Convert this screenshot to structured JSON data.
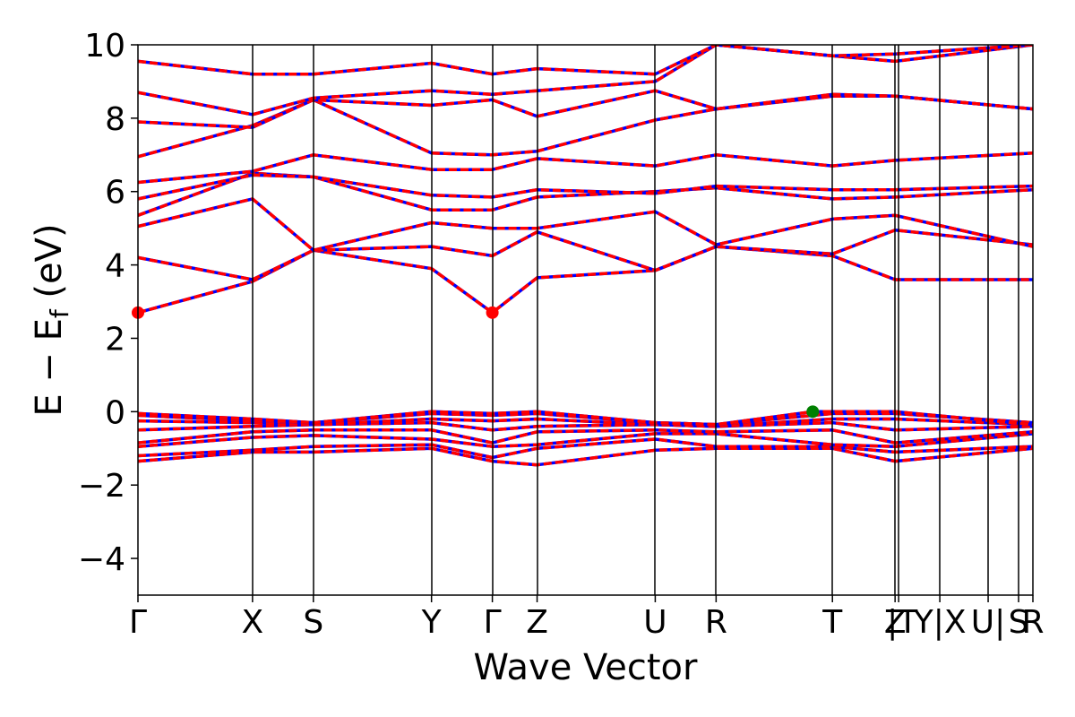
{
  "chart_data": {
    "type": "line",
    "xlabel": "Wave Vector",
    "ylabel": "E − E",
    "ylabel_sub": "f",
    "ylabel_unit": " (eV)",
    "ylim": [
      -5,
      10
    ],
    "yticks": [
      -4,
      -2,
      0,
      2,
      4,
      6,
      8,
      10
    ],
    "yticks_labels": [
      "−4",
      "−2",
      "0",
      "2",
      "4",
      "6",
      "8",
      "10"
    ],
    "xlim": [
      0,
      25
    ],
    "kpoints": [
      {
        "label": "Γ",
        "x": 0
      },
      {
        "label": "X",
        "x": 3.2
      },
      {
        "label": "S",
        "x": 4.9
      },
      {
        "label": "Y",
        "x": 8.2
      },
      {
        "label": "Γ",
        "x": 9.9
      },
      {
        "label": "Z",
        "x": 11.15
      },
      {
        "label": "U",
        "x": 14.45
      },
      {
        "label": "R",
        "x": 16.15
      },
      {
        "label": "T",
        "x": 19.4
      },
      {
        "label": "Z",
        "x": 21.15
      },
      {
        "label": "|T",
        "x": 21.25
      },
      {
        "label": "Y|X",
        "x": 22.4
      },
      {
        "label": "U|",
        "x": 23.75
      },
      {
        "label": "S",
        "x": 24.6
      },
      {
        "label": "R",
        "x": 25
      }
    ],
    "band_colors": {
      "spin_up": "#0000ff",
      "spin_down": "#ff0000"
    },
    "cbm_points": [
      {
        "x": 0,
        "y": 2.7
      },
      {
        "x": 9.9,
        "y": 2.7
      }
    ],
    "vbm_points": [
      {
        "x": 18.85,
        "y": 0.0
      }
    ],
    "cbm_color": "#ff0000",
    "vbm_color": "#008000",
    "bands": [
      {
        "x": [
          0,
          3.2,
          4.9,
          8.2,
          9.9,
          11.15,
          14.45,
          16.15,
          19.4,
          21.15,
          25
        ],
        "y": [
          -1.35,
          -1.1,
          -1.1,
          -1.0,
          -1.35,
          -1.45,
          -1.05,
          -1.0,
          -1.0,
          -1.35,
          -1.0
        ]
      },
      {
        "x": [
          0,
          3.2,
          4.9,
          8.2,
          9.9,
          11.15,
          14.45,
          16.15,
          19.4,
          21.15,
          25
        ],
        "y": [
          -1.2,
          -1.05,
          -0.95,
          -0.9,
          -1.25,
          -1.0,
          -0.75,
          -0.95,
          -0.95,
          -1.1,
          -0.95
        ]
      },
      {
        "x": [
          0,
          3.2,
          4.9,
          8.2,
          9.9,
          11.15,
          14.45,
          16.15,
          19.4,
          21.15,
          25
        ],
        "y": [
          -0.95,
          -0.7,
          -0.65,
          -0.75,
          -0.95,
          -0.9,
          -0.6,
          -0.6,
          -0.9,
          -0.95,
          -0.6
        ]
      },
      {
        "x": [
          0,
          3.2,
          4.9,
          8.2,
          9.9,
          11.15,
          14.45,
          16.15,
          19.4,
          21.15,
          25
        ],
        "y": [
          -0.85,
          -0.55,
          -0.5,
          -0.5,
          -0.85,
          -0.55,
          -0.5,
          -0.55,
          -0.5,
          -0.85,
          -0.55
        ]
      },
      {
        "x": [
          0,
          3.2,
          4.9,
          8.2,
          9.9,
          11.15,
          14.45,
          16.15,
          19.4,
          21.15,
          25
        ],
        "y": [
          -0.5,
          -0.4,
          -0.35,
          -0.3,
          -0.5,
          -0.4,
          -0.35,
          -0.4,
          -0.3,
          -0.5,
          -0.4
        ]
      },
      {
        "x": [
          0,
          3.2,
          4.9,
          8.2,
          9.9,
          11.15,
          14.45,
          16.15,
          19.4,
          21.15,
          25
        ],
        "y": [
          -0.25,
          -0.3,
          -0.35,
          -0.2,
          -0.25,
          -0.2,
          -0.35,
          -0.4,
          -0.2,
          -0.2,
          -0.35
        ]
      },
      {
        "x": [
          0,
          3.2,
          4.9,
          8.2,
          9.9,
          11.15,
          14.45,
          16.15,
          19.4,
          21.15,
          25
        ],
        "y": [
          -0.1,
          -0.25,
          -0.3,
          -0.05,
          -0.1,
          -0.05,
          -0.3,
          -0.35,
          -0.05,
          -0.05,
          -0.3
        ]
      },
      {
        "x": [
          0,
          3.2,
          4.9,
          8.2,
          9.9,
          11.15,
          14.45,
          16.15,
          18.85,
          19.4,
          21.15,
          25
        ],
        "y": [
          -0.05,
          -0.2,
          -0.3,
          0.0,
          -0.05,
          0.0,
          -0.3,
          -0.35,
          0.0,
          0.0,
          0.0,
          -0.35
        ]
      },
      {
        "x": [
          0,
          3.2,
          4.9,
          8.2,
          9.9,
          11.15,
          14.45,
          16.15,
          19.4,
          21.15,
          25
        ],
        "y": [
          2.7,
          3.55,
          4.4,
          3.9,
          2.7,
          3.65,
          3.85,
          4.5,
          4.25,
          3.6,
          3.6
        ]
      },
      {
        "x": [
          0,
          3.2,
          4.9,
          8.2,
          9.9,
          11.15,
          14.45,
          16.15,
          19.4,
          21.15,
          25
        ],
        "y": [
          4.2,
          3.6,
          4.4,
          4.5,
          4.25,
          4.9,
          3.85,
          4.5,
          4.3,
          4.95,
          4.55
        ]
      },
      {
        "x": [
          0,
          3.2,
          4.9,
          8.2,
          9.9,
          11.15,
          14.45,
          16.15,
          19.4,
          21.15,
          25
        ],
        "y": [
          5.05,
          5.8,
          4.4,
          5.15,
          5.0,
          5.0,
          5.45,
          4.55,
          5.25,
          5.35,
          4.5
        ]
      },
      {
        "x": [
          0,
          3.2,
          4.9,
          8.2,
          9.9,
          11.15,
          14.45,
          16.15,
          19.4,
          21.15,
          25
        ],
        "y": [
          5.35,
          6.5,
          6.4,
          5.5,
          5.5,
          5.85,
          6.0,
          6.1,
          5.8,
          5.85,
          6.05
        ]
      },
      {
        "x": [
          0,
          3.2,
          4.9,
          8.2,
          9.9,
          11.15,
          14.45,
          16.15,
          19.4,
          21.15,
          25
        ],
        "y": [
          5.8,
          6.45,
          6.4,
          5.9,
          5.85,
          6.05,
          5.95,
          6.15,
          6.05,
          6.05,
          6.15
        ]
      },
      {
        "x": [
          0,
          3.2,
          4.9,
          8.2,
          9.9,
          11.15,
          14.45,
          16.15,
          19.4,
          21.15,
          25
        ],
        "y": [
          6.25,
          6.55,
          7.0,
          6.6,
          6.6,
          6.9,
          6.7,
          7.0,
          6.7,
          6.85,
          7.05
        ]
      },
      {
        "x": [
          0,
          3.2,
          4.9,
          8.2,
          9.9,
          11.15,
          14.45,
          16.15,
          19.4,
          21.15,
          25
        ],
        "y": [
          6.95,
          7.8,
          8.5,
          7.05,
          7.0,
          7.1,
          7.95,
          8.25,
          8.6,
          8.6,
          8.25
        ]
      },
      {
        "x": [
          0,
          3.2,
          4.9,
          8.2,
          9.9,
          11.15,
          14.45,
          16.15,
          19.4,
          21.15,
          25
        ],
        "y": [
          7.9,
          7.75,
          8.5,
          8.35,
          8.5,
          8.05,
          8.75,
          8.25,
          8.65,
          8.6,
          8.25
        ]
      },
      {
        "x": [
          0,
          3.2,
          4.9,
          8.2,
          9.9,
          11.15,
          14.45,
          16.15,
          19.4,
          21.15,
          25
        ],
        "y": [
          8.7,
          8.1,
          8.55,
          8.75,
          8.65,
          8.75,
          9.0,
          10.0,
          9.7,
          9.55,
          10.0
        ]
      },
      {
        "x": [
          0,
          3.2,
          4.9,
          8.2,
          9.9,
          11.15,
          14.45,
          16.15,
          19.4,
          21.15,
          25
        ],
        "y": [
          9.55,
          9.2,
          9.2,
          9.5,
          9.2,
          9.35,
          9.2,
          10.0,
          9.7,
          9.75,
          10.0
        ]
      }
    ]
  }
}
